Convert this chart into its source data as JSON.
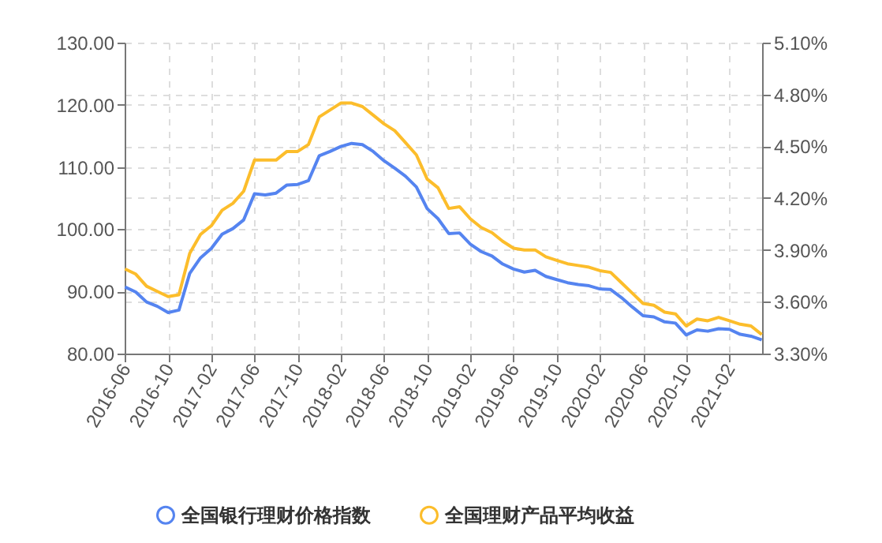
{
  "chart_data": {
    "type": "line",
    "categories": [
      "2016-06",
      null,
      null,
      null,
      "2016-10",
      null,
      null,
      null,
      "2017-02",
      null,
      null,
      null,
      "2017-06",
      null,
      null,
      null,
      "2017-10",
      null,
      null,
      null,
      "2018-02",
      null,
      null,
      null,
      "2018-06",
      null,
      null,
      null,
      "2018-10",
      null,
      null,
      null,
      "2019-02",
      null,
      null,
      null,
      "2019-06",
      null,
      null,
      null,
      "2019-10",
      null,
      null,
      null,
      "2020-02",
      null,
      null,
      null,
      "2020-06",
      null,
      null,
      null,
      "2020-10",
      null,
      null,
      null,
      "2021-02",
      null,
      null,
      null
    ],
    "series": [
      {
        "name": "全国银行理财价格指数",
        "color": "#5584f0",
        "values": [
          90.7,
          89.9,
          88.3,
          87.6,
          86.6,
          87.0,
          92.9,
          95.4,
          96.9,
          99.2,
          100.1,
          101.5,
          105.7,
          105.5,
          105.8,
          107.1,
          107.2,
          107.8,
          111.8,
          112.5,
          113.3,
          113.8,
          113.6,
          112.5,
          111.0,
          109.8,
          108.5,
          106.8,
          103.3,
          101.7,
          99.3,
          99.4,
          97.6,
          96.4,
          95.7,
          94.4,
          93.6,
          93.1,
          93.4,
          92.4,
          91.9,
          91.4,
          91.1,
          90.9,
          90.4,
          90.3,
          89.0,
          87.5,
          86.1,
          85.9,
          85.1,
          84.9,
          83.0,
          83.8,
          83.6,
          84.0,
          83.9,
          83.1,
          82.8,
          82.2
        ]
      },
      {
        "name": "全国理财产品平均收益",
        "color": "#fcbd2b",
        "axis": "y2",
        "values": [
          3.79,
          3.76,
          3.69,
          3.66,
          3.63,
          3.64,
          3.88,
          3.99,
          4.04,
          4.13,
          4.17,
          4.24,
          4.42,
          4.42,
          4.42,
          4.47,
          4.47,
          4.51,
          4.67,
          4.71,
          4.75,
          4.75,
          4.73,
          4.68,
          4.63,
          4.59,
          4.52,
          4.45,
          4.31,
          4.26,
          4.14,
          4.15,
          4.08,
          4.03,
          4.0,
          3.95,
          3.91,
          3.9,
          3.9,
          3.86,
          3.84,
          3.82,
          3.81,
          3.8,
          3.78,
          3.77,
          3.71,
          3.65,
          3.59,
          3.58,
          3.54,
          3.53,
          3.46,
          3.5,
          3.49,
          3.51,
          3.49,
          3.47,
          3.46,
          3.41
        ]
      }
    ],
    "ylim": [
      80,
      130
    ],
    "yticks": [
      {
        "value": 80,
        "label": "80.00"
      },
      {
        "value": 90,
        "label": "90.00"
      },
      {
        "value": 100,
        "label": "100.00"
      },
      {
        "value": 110,
        "label": "110.00"
      },
      {
        "value": 120,
        "label": "120.00"
      },
      {
        "value": 130,
        "label": "130.00"
      }
    ],
    "y2lim": [
      3.3,
      5.1
    ],
    "y2ticks": [
      {
        "value": 3.3,
        "label": "3.30%"
      },
      {
        "value": 3.6,
        "label": "3.60%"
      },
      {
        "value": 3.9,
        "label": "3.90%"
      },
      {
        "value": 4.2,
        "label": "4.20%"
      },
      {
        "value": 4.5,
        "label": "4.50%"
      },
      {
        "value": 4.8,
        "label": "4.80%"
      },
      {
        "value": 5.1,
        "label": "5.10%"
      }
    ],
    "grid": true,
    "legend": "bottom",
    "marker": "none",
    "line_style": "solid"
  }
}
